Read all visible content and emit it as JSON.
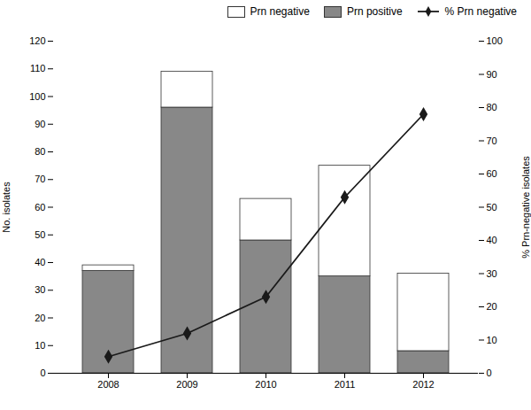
{
  "chart_data": {
    "type": "bar",
    "stacked": true,
    "categories": [
      "2008",
      "2009",
      "2010",
      "2011",
      "2012"
    ],
    "series": [
      {
        "name": "Prn positive",
        "color": "#888888",
        "values": [
          37,
          96,
          48,
          35,
          8
        ]
      },
      {
        "name": "Prn negative",
        "color": "#ffffff",
        "values": [
          2,
          13,
          15,
          40,
          28
        ]
      },
      {
        "name": "% Prn negative",
        "type": "line",
        "axis": "y2",
        "color": "#1a1a1a",
        "marker": "diamond",
        "values": [
          5,
          12,
          23,
          53,
          78
        ]
      }
    ],
    "ylabel": "No. isolates",
    "y2label": "% Prn-negative isolates",
    "ylim": [
      0,
      120
    ],
    "yticks": [
      0,
      10,
      20,
      30,
      40,
      50,
      60,
      70,
      80,
      90,
      100,
      110,
      120
    ],
    "y2lim": [
      0,
      100
    ],
    "y2ticks": [
      0,
      10,
      20,
      30,
      40,
      50,
      60,
      70,
      80,
      90,
      100
    ],
    "legend": "upper right",
    "grid": false
  }
}
